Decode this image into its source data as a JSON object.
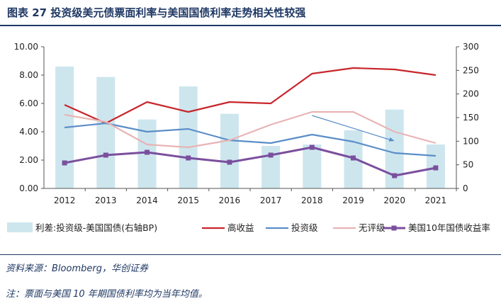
{
  "title": "图表 27   投资级美元债票面利率与美国国债利率走势相关性较强",
  "source": "资料来源：Bloomberg，华创证券",
  "footnote": "注：票面与美国 10 年期国债利率均为当年均值。",
  "chart_data": {
    "type": "bar+line",
    "categories": [
      "2012",
      "2013",
      "2014",
      "2015",
      "2016",
      "2017",
      "2018",
      "2019",
      "2020",
      "2021"
    ],
    "left_axis": {
      "min": 0,
      "max": 10,
      "step": 2,
      "tick_labels": [
        "0.00",
        "2.00",
        "4.00",
        "6.00",
        "8.00",
        "10.00"
      ]
    },
    "right_axis": {
      "min": 0,
      "max": 300,
      "step": 50,
      "tick_labels": [
        "0",
        "50",
        "100",
        "150",
        "200",
        "250",
        "300"
      ]
    },
    "bars": {
      "name": "利差:投资级-美国国债(右轴BP)",
      "axis": "right",
      "color": "#cde6ee",
      "values": [
        258,
        236,
        146,
        216,
        158,
        90,
        93,
        123,
        167,
        93
      ]
    },
    "series": [
      {
        "name": "高收益",
        "color": "#c8262c",
        "marker": false,
        "values": [
          5.9,
          4.6,
          6.1,
          5.4,
          6.1,
          6.0,
          8.1,
          8.5,
          8.4,
          8.0
        ]
      },
      {
        "name": "投资级",
        "color": "#5b8ec8",
        "marker": false,
        "values": [
          4.3,
          4.6,
          4.0,
          4.2,
          3.4,
          3.2,
          3.8,
          3.3,
          2.5,
          2.3
        ]
      },
      {
        "name": "无评级",
        "color": "#e8b4b4",
        "marker": false,
        "values": [
          5.2,
          4.7,
          3.1,
          2.9,
          3.4,
          4.5,
          5.4,
          5.4,
          4.0,
          3.2
        ]
      },
      {
        "name": "美国10年国债收益率",
        "color": "#7b4f9e",
        "marker": true,
        "values": [
          1.8,
          2.35,
          2.55,
          2.15,
          1.85,
          2.35,
          2.9,
          2.15,
          0.9,
          1.45
        ]
      }
    ],
    "arrow": {
      "from": {
        "category": "2018",
        "value": 5.15
      },
      "to": {
        "category": "2020",
        "value": 3.35
      },
      "color": "#5b8ec8"
    },
    "grid": false,
    "legend_position": "bottom"
  }
}
